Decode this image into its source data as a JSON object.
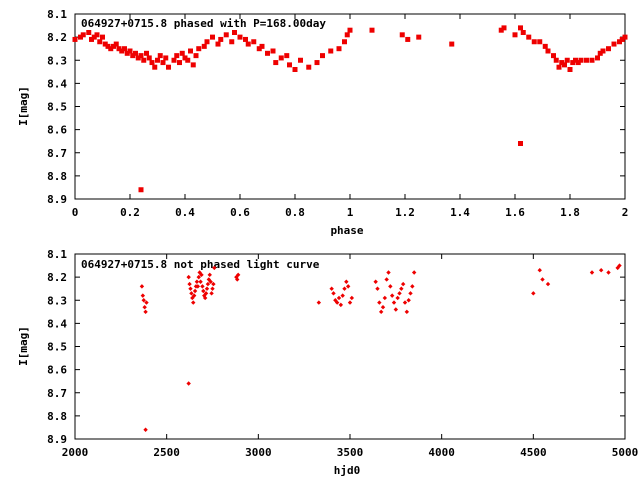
{
  "chart_data": [
    {
      "type": "scatter",
      "title": "064927+0715.8 phased with P=168.00day",
      "xlabel": "phase",
      "ylabel": "I[mag]",
      "xlim": [
        0,
        2
      ],
      "ylim": [
        8.1,
        8.9
      ],
      "y_inverted": true,
      "xticks": [
        "0",
        "0.2",
        "0.4",
        "0.6",
        "0.8",
        "1",
        "1.2",
        "1.4",
        "1.6",
        "1.8",
        "2"
      ],
      "yticks": [
        "8.1",
        "8.2",
        "8.3",
        "8.4",
        "8.5",
        "8.6",
        "8.7",
        "8.8",
        "8.9"
      ],
      "marker": "filled-square",
      "color": "#ee0000",
      "series": [
        {
          "x": [
            0.0,
            0.02,
            0.03,
            0.05,
            0.06,
            0.07,
            0.08,
            0.09,
            0.1,
            0.11,
            0.12,
            0.13,
            0.14,
            0.15,
            0.16,
            0.17,
            0.18,
            0.19,
            0.2,
            0.21,
            0.22,
            0.23,
            0.24,
            0.25,
            0.26,
            0.27,
            0.28,
            0.29,
            0.3,
            0.31,
            0.32,
            0.33,
            0.34,
            0.36,
            0.37,
            0.38,
            0.39,
            0.4,
            0.41,
            0.42,
            0.43,
            0.44,
            0.45,
            0.47,
            0.48,
            0.5,
            0.52,
            0.53,
            0.55,
            0.57,
            0.58,
            0.6,
            0.62,
            0.63,
            0.65,
            0.67,
            0.68,
            0.7,
            0.72,
            0.73,
            0.75,
            0.77,
            0.78,
            0.8,
            0.82,
            0.85,
            0.88,
            0.9,
            0.93,
            0.96,
            0.98,
            0.99,
            1.0,
            1.08,
            1.19,
            1.21,
            1.25,
            1.37,
            1.55,
            1.56,
            1.6,
            1.62,
            1.63,
            1.65,
            1.67,
            1.69,
            1.71,
            1.72,
            1.74,
            1.75,
            1.76,
            1.77,
            1.78,
            1.79,
            1.8,
            1.81,
            1.82,
            1.83,
            1.84,
            1.86,
            1.88,
            1.9,
            1.91,
            1.92,
            1.94,
            1.96,
            1.98,
            1.99,
            2.0,
            0.24,
            1.62
          ],
          "y": [
            8.21,
            8.2,
            8.19,
            8.18,
            8.21,
            8.2,
            8.19,
            8.22,
            8.2,
            8.23,
            8.24,
            8.25,
            8.24,
            8.23,
            8.25,
            8.26,
            8.25,
            8.27,
            8.26,
            8.28,
            8.27,
            8.29,
            8.28,
            8.3,
            8.27,
            8.29,
            8.31,
            8.33,
            8.3,
            8.28,
            8.31,
            8.29,
            8.33,
            8.3,
            8.28,
            8.31,
            8.27,
            8.29,
            8.3,
            8.26,
            8.32,
            8.28,
            8.25,
            8.24,
            8.22,
            8.2,
            8.23,
            8.21,
            8.19,
            8.22,
            8.18,
            8.2,
            8.21,
            8.23,
            8.22,
            8.25,
            8.24,
            8.27,
            8.26,
            8.31,
            8.29,
            8.28,
            8.32,
            8.34,
            8.3,
            8.33,
            8.31,
            8.28,
            8.26,
            8.25,
            8.22,
            8.19,
            8.17,
            8.17,
            8.19,
            8.21,
            8.2,
            8.23,
            8.17,
            8.16,
            8.19,
            8.16,
            8.18,
            8.2,
            8.22,
            8.22,
            8.24,
            8.26,
            8.28,
            8.3,
            8.33,
            8.31,
            8.32,
            8.3,
            8.34,
            8.31,
            8.3,
            8.31,
            8.3,
            8.3,
            8.3,
            8.29,
            8.27,
            8.26,
            8.25,
            8.23,
            8.22,
            8.21,
            8.2,
            8.86,
            8.66
          ]
        }
      ]
    },
    {
      "type": "scatter",
      "title": "064927+0715.8 not phased light curve",
      "xlabel": "hjd0",
      "ylabel": "I[mag]",
      "xlim": [
        2000,
        5000
      ],
      "ylim": [
        8.1,
        8.9
      ],
      "y_inverted": true,
      "xticks": [
        "2000",
        "2500",
        "3000",
        "3500",
        "4000",
        "4500",
        "5000"
      ],
      "yticks": [
        "8.1",
        "8.2",
        "8.3",
        "8.4",
        "8.5",
        "8.6",
        "8.7",
        "8.8",
        "8.9"
      ],
      "marker": "diamond",
      "color": "#ee0000",
      "series": [
        {
          "x": [
            2365,
            2370,
            2375,
            2380,
            2385,
            2390,
            2620,
            2625,
            2630,
            2635,
            2640,
            2645,
            2650,
            2655,
            2660,
            2665,
            2670,
            2675,
            2680,
            2685,
            2690,
            2695,
            2700,
            2705,
            2710,
            2715,
            2720,
            2725,
            2730,
            2735,
            2740,
            2745,
            2750,
            2755,
            2760,
            2880,
            2885,
            2890,
            3330,
            3400,
            3410,
            3420,
            3430,
            3440,
            3450,
            3460,
            3470,
            3480,
            3490,
            3500,
            3510,
            3640,
            3650,
            3660,
            3670,
            3680,
            3690,
            3700,
            3710,
            3720,
            3730,
            3740,
            3750,
            3760,
            3770,
            3780,
            3790,
            3800,
            3810,
            3820,
            3830,
            3840,
            3850,
            4500,
            4535,
            4550,
            4580,
            4820,
            4870,
            4910,
            4960,
            4970,
            2385,
            2620
          ],
          "y": [
            8.24,
            8.28,
            8.3,
            8.33,
            8.35,
            8.31,
            8.2,
            8.23,
            8.25,
            8.27,
            8.29,
            8.31,
            8.28,
            8.26,
            8.24,
            8.22,
            8.24,
            8.2,
            8.18,
            8.22,
            8.19,
            8.24,
            8.26,
            8.28,
            8.29,
            8.27,
            8.25,
            8.23,
            8.21,
            8.19,
            8.22,
            8.27,
            8.25,
            8.23,
            8.16,
            8.2,
            8.21,
            8.19,
            8.31,
            8.25,
            8.27,
            8.3,
            8.31,
            8.29,
            8.32,
            8.28,
            8.25,
            8.22,
            8.24,
            8.31,
            8.29,
            8.22,
            8.25,
            8.31,
            8.35,
            8.33,
            8.29,
            8.21,
            8.18,
            8.24,
            8.28,
            8.31,
            8.34,
            8.29,
            8.27,
            8.25,
            8.23,
            8.31,
            8.35,
            8.3,
            8.27,
            8.24,
            8.18,
            8.27,
            8.17,
            8.21,
            8.23,
            8.18,
            8.17,
            8.18,
            8.16,
            8.15,
            8.86,
            8.66
          ]
        }
      ]
    }
  ]
}
